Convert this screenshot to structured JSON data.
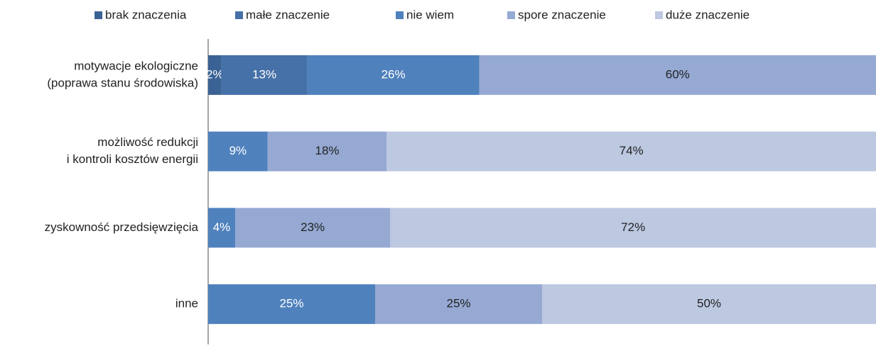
{
  "chart_data": {
    "type": "bar",
    "orientation": "horizontal",
    "stacked": "percent",
    "categories": [
      [
        "motywacje ekologiczne",
        "(poprawa stanu środowiska)"
      ],
      [
        "możliwość redukcji",
        "i kontroli kosztów energii"
      ],
      [
        "zyskowność przedsięwzięcia"
      ],
      [
        "inne"
      ]
    ],
    "series": [
      {
        "name": "brak znaczenia",
        "color": "#3b6294",
        "values": [
          2,
          null,
          null,
          null
        ],
        "value_labels": [
          "2%",
          null,
          null,
          null
        ]
      },
      {
        "name": "małe znaczenie",
        "color": "#4671a8",
        "values": [
          13,
          null,
          null,
          null
        ],
        "value_labels": [
          "13%",
          null,
          null,
          null
        ]
      },
      {
        "name": "nie wiem",
        "color": "#4f81bd",
        "values": [
          26,
          9,
          4,
          25
        ],
        "value_labels": [
          "26%",
          "9%",
          "4%",
          "25%"
        ]
      },
      {
        "name": "spore znaczenie",
        "color": "#95a9d3",
        "values": [
          60,
          18,
          23,
          25
        ],
        "value_labels": [
          "60%",
          "18%",
          "23%",
          "25%"
        ]
      },
      {
        "name": "duże znaczenie",
        "color": "#bdc8e1",
        "values": [
          null,
          74,
          72,
          50
        ],
        "value_labels": [
          null,
          "74%",
          "72%",
          "50%"
        ]
      }
    ],
    "legend": "top"
  }
}
